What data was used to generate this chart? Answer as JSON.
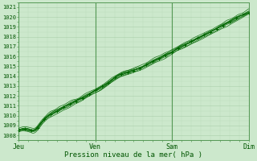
{
  "xlabel": "Pression niveau de la mer( hPa )",
  "bg_color": "#cce8cc",
  "plot_bg_color": "#cce8cc",
  "grid_major_color": "#aacfaa",
  "grid_minor_color": "#bbdebb",
  "line_color": "#006600",
  "ylim": [
    1007.5,
    1021.5
  ],
  "yticks": [
    1008,
    1009,
    1010,
    1011,
    1012,
    1013,
    1014,
    1015,
    1016,
    1017,
    1018,
    1019,
    1020,
    1021
  ],
  "xtick_labels": [
    "Jeu",
    "Ven",
    "Sam",
    "Dim"
  ],
  "xtick_positions": [
    0,
    0.333,
    0.667,
    1.0
  ],
  "n_points": 289,
  "n_lines": 7
}
